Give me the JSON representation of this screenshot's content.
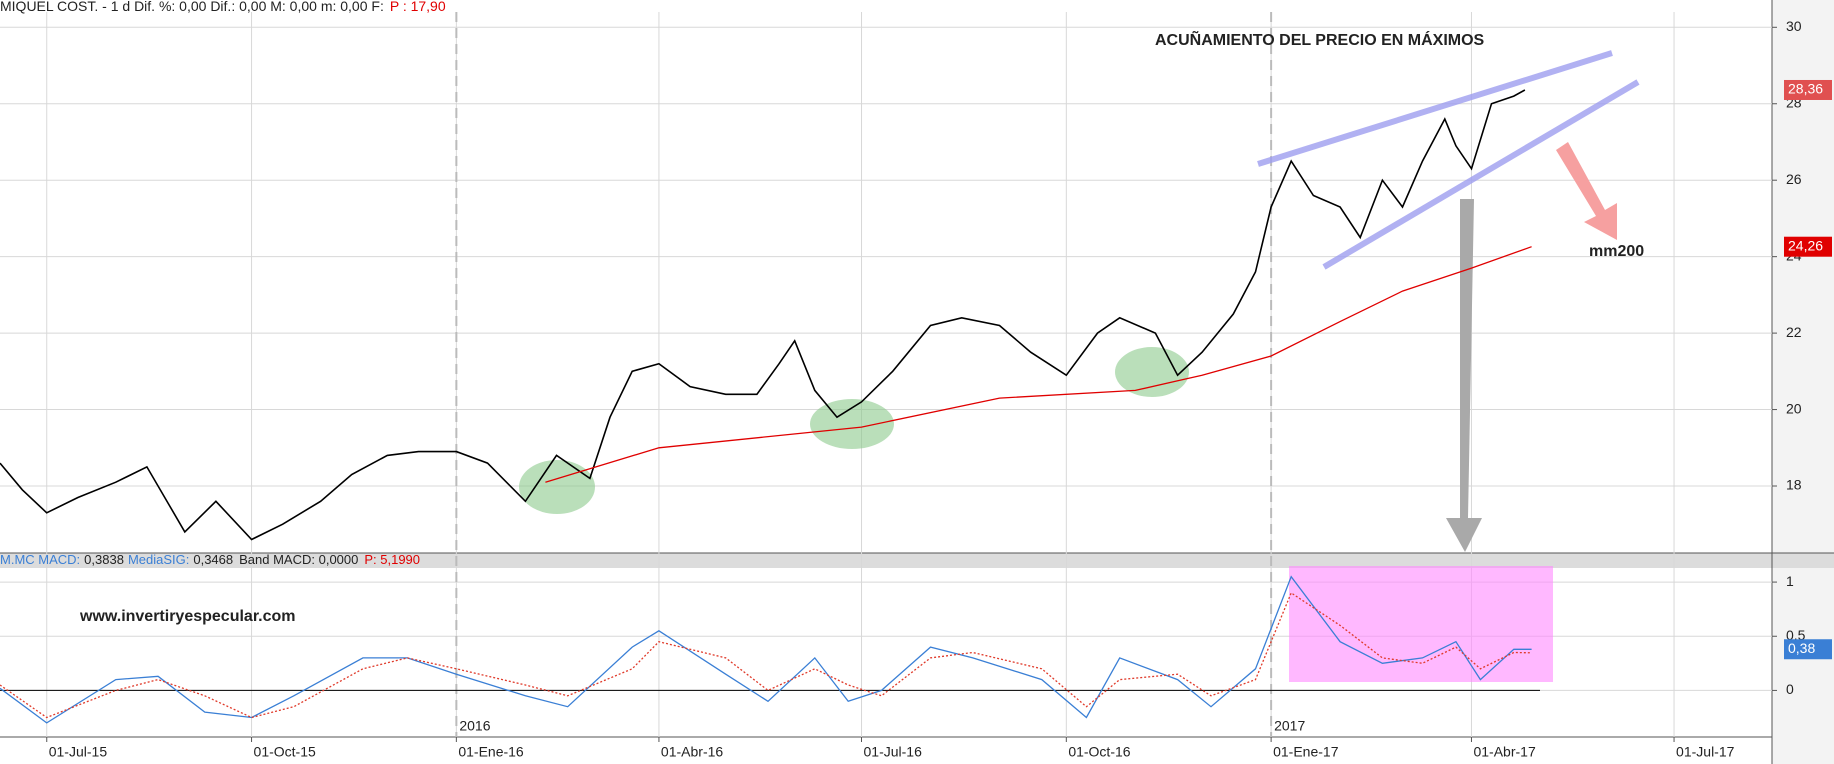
{
  "chart_data": [
    {
      "type": "line",
      "header": "MIQUEL COST. -  1 d Dif. %: 0,00 Dif.: 0,00 M: 0,00 m: 0,00 F:",
      "header_price": "P : 17,90",
      "title": "ACUÑAMIENTO DEL PRECIO EN MÁXIMOS",
      "annotation": "mm200",
      "xlim": [
        "2015-06-10",
        "2017-08-14"
      ],
      "ylim": [
        16.3,
        30.4
      ],
      "yticks": [
        18,
        20,
        22,
        24,
        26,
        28,
        30
      ],
      "grid": true,
      "series": [
        {
          "name": "MIQUEL COST.",
          "color": "#000000",
          "x": [
            "2015-06-10",
            "2015-06-20",
            "2015-07-01",
            "2015-07-15",
            "2015-08-01",
            "2015-08-15",
            "2015-08-25",
            "2015-09-01",
            "2015-09-15",
            "2015-10-01",
            "2015-10-15",
            "2015-11-01",
            "2015-11-15",
            "2015-12-01",
            "2015-12-15",
            "2016-01-01",
            "2016-01-15",
            "2016-02-01",
            "2016-02-15",
            "2016-03-01",
            "2016-03-10",
            "2016-03-20",
            "2016-04-01",
            "2016-04-15",
            "2016-05-01",
            "2016-05-15",
            "2016-05-25",
            "2016-06-01",
            "2016-06-10",
            "2016-06-20",
            "2016-07-01",
            "2016-07-15",
            "2016-08-01",
            "2016-08-15",
            "2016-09-01",
            "2016-09-15",
            "2016-10-01",
            "2016-10-15",
            "2016-10-25",
            "2016-11-10",
            "2016-11-20",
            "2016-12-01",
            "2016-12-15",
            "2016-12-25",
            "2017-01-01",
            "2017-01-10",
            "2017-01-20",
            "2017-02-01",
            "2017-02-10",
            "2017-02-20",
            "2017-03-01",
            "2017-03-10",
            "2017-03-20",
            "2017-03-25",
            "2017-04-01",
            "2017-04-10",
            "2017-04-20",
            "2017-04-25"
          ],
          "values": [
            18.6,
            17.9,
            17.3,
            17.7,
            18.1,
            18.5,
            17.5,
            16.8,
            17.6,
            16.6,
            17.0,
            17.6,
            18.3,
            18.8,
            18.9,
            18.9,
            18.6,
            17.6,
            18.8,
            18.2,
            19.8,
            21.0,
            21.2,
            20.6,
            20.4,
            20.4,
            21.2,
            21.8,
            20.5,
            19.8,
            20.2,
            21.0,
            22.2,
            22.4,
            22.2,
            21.5,
            20.9,
            22.0,
            22.4,
            22.0,
            20.9,
            21.5,
            22.5,
            23.6,
            25.3,
            26.5,
            25.6,
            25.3,
            24.5,
            26.0,
            25.3,
            26.5,
            27.6,
            26.9,
            26.3,
            28.0,
            28.2,
            28.36
          ],
          "tag": {
            "value": 28.36,
            "label": "28,36"
          }
        },
        {
          "name": "mm200",
          "color": "#e00000",
          "x": [
            "2016-02-10",
            "2016-04-01",
            "2016-07-01",
            "2016-09-01",
            "2016-11-01",
            "2016-12-01",
            "2017-01-01",
            "2017-02-01",
            "2017-03-01",
            "2017-04-01",
            "2017-04-28"
          ],
          "values": [
            18.1,
            19.0,
            19.54,
            20.3,
            20.5,
            20.9,
            21.4,
            22.3,
            23.1,
            23.7,
            24.26
          ],
          "tag": {
            "value": 24.26,
            "label": "24,26"
          }
        }
      ]
    },
    {
      "type": "line",
      "header": [
        "M.MC MACD:",
        "0,3838",
        "MediaSIG:",
        "0,3468",
        "Band MACD: 0,0000",
        "P: 5,1990"
      ],
      "annotation": "www.invertiryespecular.com",
      "xlim": [
        "2015-06-10",
        "2017-08-14"
      ],
      "xticks": [
        {
          "value": "2015-07-01",
          "label": "01-Jul-15"
        },
        {
          "value": "2015-10-01",
          "label": "01-Oct-15"
        },
        {
          "value": "2016-01-01",
          "label": "01-Ene-16"
        },
        {
          "value": "2016-04-01",
          "label": "01-Abr-16"
        },
        {
          "value": "2016-07-01",
          "label": "01-Jul-16"
        },
        {
          "value": "2016-10-01",
          "label": "01-Oct-16"
        },
        {
          "value": "2017-01-01",
          "label": "01-Ene-17"
        },
        {
          "value": "2017-04-01",
          "label": "01-Abr-17"
        },
        {
          "value": "2017-07-01",
          "label": "01-Jul-17"
        }
      ],
      "year_marks": [
        {
          "value": "2016-01-01",
          "label": "2016"
        },
        {
          "value": "2017-01-01",
          "label": "2017"
        }
      ],
      "ylim": [
        -0.43,
        1.13
      ],
      "yticks": [
        0,
        {
          "value": 0.5,
          "label": "0,5"
        },
        1
      ],
      "grid": true,
      "series": [
        {
          "name": "MACD",
          "color": "#3a7fd5",
          "x": [
            "2015-06-10",
            "2015-07-01",
            "2015-08-01",
            "2015-08-20",
            "2015-09-10",
            "2015-10-01",
            "2015-10-20",
            "2015-11-20",
            "2015-12-10",
            "2016-01-01",
            "2016-02-01",
            "2016-02-20",
            "2016-03-20",
            "2016-04-01",
            "2016-05-01",
            "2016-05-20",
            "2016-06-10",
            "2016-06-25",
            "2016-07-10",
            "2016-08-01",
            "2016-08-20",
            "2016-09-20",
            "2016-10-10",
            "2016-10-25",
            "2016-11-20",
            "2016-12-05",
            "2016-12-25",
            "2017-01-10",
            "2017-02-01",
            "2017-02-20",
            "2017-03-10",
            "2017-03-25",
            "2017-04-05",
            "2017-04-20",
            "2017-04-28"
          ],
          "values": [
            0.02,
            -0.3,
            0.1,
            0.13,
            -0.2,
            -0.25,
            -0.05,
            0.3,
            0.3,
            0.15,
            -0.05,
            -0.15,
            0.4,
            0.55,
            0.15,
            -0.1,
            0.3,
            -0.1,
            0.0,
            0.4,
            0.3,
            0.1,
            -0.25,
            0.3,
            0.1,
            -0.15,
            0.2,
            1.05,
            0.45,
            0.25,
            0.3,
            0.45,
            0.1,
            0.38,
            0.38
          ],
          "tag": {
            "value": 0.38,
            "label": "0,38"
          }
        },
        {
          "name": "MediaSIG",
          "color": "#e03a2a",
          "x": [
            "2015-06-10",
            "2015-07-01",
            "2015-08-01",
            "2015-08-20",
            "2015-09-10",
            "2015-10-01",
            "2015-10-20",
            "2015-11-20",
            "2015-12-10",
            "2016-01-01",
            "2016-02-01",
            "2016-02-20",
            "2016-03-20",
            "2016-04-01",
            "2016-05-01",
            "2016-05-20",
            "2016-06-10",
            "2016-06-25",
            "2016-07-10",
            "2016-08-01",
            "2016-08-20",
            "2016-09-20",
            "2016-10-10",
            "2016-10-25",
            "2016-11-20",
            "2016-12-05",
            "2016-12-25",
            "2017-01-10",
            "2017-02-01",
            "2017-02-20",
            "2017-03-10",
            "2017-03-25",
            "2017-04-05",
            "2017-04-20",
            "2017-04-28"
          ],
          "values": [
            0.05,
            -0.25,
            0.0,
            0.1,
            -0.05,
            -0.25,
            -0.15,
            0.2,
            0.3,
            0.2,
            0.05,
            -0.05,
            0.2,
            0.45,
            0.3,
            0.0,
            0.2,
            0.05,
            -0.05,
            0.3,
            0.35,
            0.2,
            -0.15,
            0.1,
            0.15,
            -0.05,
            0.1,
            0.9,
            0.6,
            0.3,
            0.25,
            0.4,
            0.2,
            0.35,
            0.3468
          ]
        }
      ]
    }
  ]
}
